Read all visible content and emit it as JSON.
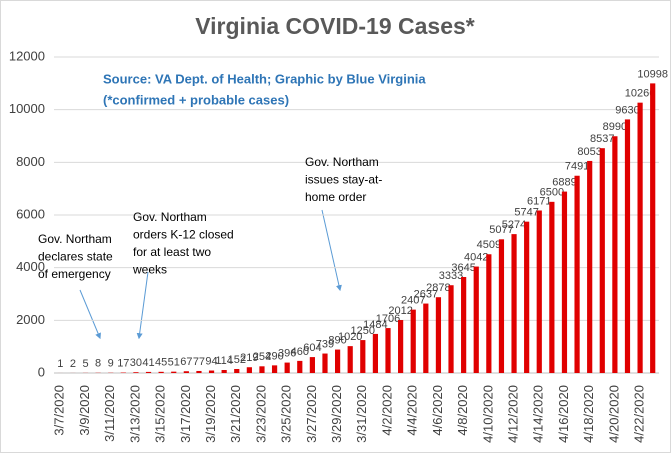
{
  "chart_data": {
    "type": "bar",
    "title": "Virginia COVID-19 Cases*",
    "subtitle": [
      "Source: VA Dept. of Health; Graphic by Blue Virginia",
      "(*confirmed + probable cases)"
    ],
    "annotations": [
      {
        "lines": [
          "Gov. Northam",
          "declares state",
          "of emergency"
        ]
      },
      {
        "lines": [
          "Gov. Northam",
          "orders K-12 closed",
          "for at least two",
          "weeks"
        ]
      },
      {
        "lines": [
          "Gov. Northam",
          "issues stay-at-",
          "home order"
        ]
      }
    ],
    "categories": [
      "3/7/2020",
      null,
      "3/9/2020",
      null,
      "3/11/2020",
      null,
      "3/13/2020",
      null,
      "3/15/2020",
      null,
      "3/17/2020",
      null,
      "3/19/2020",
      null,
      "3/21/2020",
      null,
      "3/23/2020",
      null,
      "3/25/2020",
      null,
      "3/27/2020",
      null,
      "3/29/2020",
      null,
      "3/31/2020",
      null,
      "4/2/2020",
      null,
      "4/4/2020",
      null,
      "4/6/2020",
      null,
      "4/8/2020",
      null,
      "4/10/2020",
      null,
      "4/12/2020",
      null,
      "4/14/2020",
      null,
      "4/16/2020",
      null,
      "4/18/2020",
      null,
      "4/20/2020",
      null,
      "4/22/2020",
      null
    ],
    "values": [
      1,
      2,
      5,
      8,
      9,
      17,
      30,
      41,
      45,
      51,
      67,
      77,
      94,
      114,
      152,
      219,
      254,
      290,
      396,
      460,
      604,
      739,
      890,
      1020,
      1250,
      1484,
      1706,
      2012,
      2407,
      2637,
      2878,
      3333,
      3645,
      4042,
      4509,
      5077,
      5274,
      5747,
      6171,
      6500,
      6889,
      7491,
      8053,
      8537,
      8990,
      9630,
      10266,
      10998
    ],
    "color": "#e00000",
    "ylim": [
      0,
      12000
    ],
    "yticks": [
      0,
      2000,
      4000,
      6000,
      8000,
      10000,
      12000
    ],
    "grid": true
  }
}
